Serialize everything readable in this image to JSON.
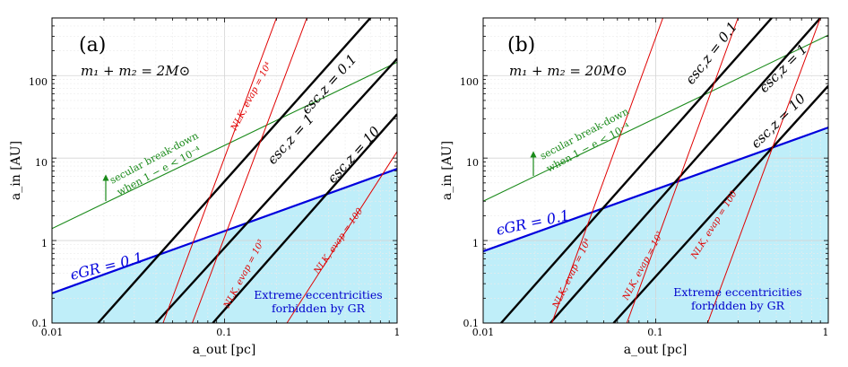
{
  "chart_data": [
    {
      "type": "line",
      "panel_label": "(a)",
      "mass_label": "m₁ + m₂ = 2M⊙",
      "xlabel": "a_out [pc]",
      "ylabel": "a_in [AU]",
      "xscale": "log",
      "yscale": "log",
      "xlim": [
        0.01,
        1
      ],
      "ylim": [
        0.1,
        500
      ],
      "grid": true,
      "x_ticks": [
        "0.01",
        "0.1",
        "1"
      ],
      "y_ticks": [
        "0.1",
        "1",
        "10",
        "100"
      ],
      "shaded_region_label": [
        "Extreme eccentricities",
        "forbidden by GR"
      ],
      "series": [
        {
          "name": "ε_GR = 0.1",
          "label": "ϵGR = 0.1",
          "color": "#0000dd",
          "x": [
            0.01,
            1
          ],
          "y": [
            0.23,
            7.4
          ]
        },
        {
          "name": "secular break-down",
          "label_lines": [
            "secular break-down",
            "when 1 − e < 10⁻⁴"
          ],
          "color": "#1a8a1a",
          "x": [
            0.01,
            1
          ],
          "y": [
            1.4,
            145
          ]
        },
        {
          "name": "ε_sc,z = 0.1",
          "label": "ϵsc,z = 0.1",
          "color": "#000000",
          "x": [
            0.0185,
            0.7
          ],
          "y": [
            0.1,
            500
          ]
        },
        {
          "name": "ε_sc,z = 1",
          "label": "ϵsc,z = 1",
          "color": "#000000",
          "x": [
            0.04,
            1
          ],
          "y": [
            0.1,
            160
          ]
        },
        {
          "name": "ε_sc,z = 10",
          "label": "ϵsc,z = 10",
          "color": "#000000",
          "x": [
            0.0855,
            1
          ],
          "y": [
            0.1,
            34
          ]
        },
        {
          "name": "N_LK, evap = 10⁴",
          "label": "NLK, evap = 10⁴",
          "color": "#e00000",
          "x": [
            0.044,
            0.2
          ],
          "y": [
            0.1,
            500
          ]
        },
        {
          "name": "N_LK, evap = 10³",
          "label": "NLK, evap = 10³",
          "color": "#e00000",
          "x": [
            0.065,
            0.3
          ],
          "y": [
            0.1,
            500
          ]
        },
        {
          "name": "N_LK, evap = 100",
          "label": "NLK, evap = 100",
          "color": "#e00000",
          "x": [
            0.23,
            1
          ],
          "y": [
            0.1,
            12
          ]
        }
      ]
    },
    {
      "type": "line",
      "panel_label": "(b)",
      "mass_label": "m₁ + m₂ = 20M⊙",
      "xlabel": "a_out [pc]",
      "ylabel": "a_in [AU]",
      "xscale": "log",
      "yscale": "log",
      "xlim": [
        0.01,
        1
      ],
      "ylim": [
        0.1,
        500
      ],
      "grid": true,
      "x_ticks": [
        "0.01",
        "0.1",
        "1"
      ],
      "y_ticks": [
        "0.1",
        "1",
        "10",
        "100"
      ],
      "shaded_region_label": [
        "Extreme eccentricities",
        "forbidden by GR"
      ],
      "series": [
        {
          "name": "ε_GR = 0.1",
          "label": "ϵGR = 0.1",
          "color": "#0000dd",
          "x": [
            0.01,
            1
          ],
          "y": [
            0.74,
            23.5
          ]
        },
        {
          "name": "secular break-down",
          "label_lines": [
            "secular break-down",
            "when 1 − e < 10⁻⁴"
          ],
          "color": "#1a8a1a",
          "x": [
            0.01,
            1
          ],
          "y": [
            3.0,
            310
          ]
        },
        {
          "name": "ε_sc,z = 0.1",
          "label": "ϵsc,z = 0.1",
          "color": "#000000",
          "x": [
            0.0127,
            0.47
          ],
          "y": [
            0.1,
            500
          ]
        },
        {
          "name": "ε_sc,z = 1",
          "label": "ϵsc,z = 1",
          "color": "#000000",
          "x": [
            0.0245,
            0.9
          ],
          "y": [
            0.1,
            500
          ]
        },
        {
          "name": "ε_sc,z = 10",
          "label": "ϵsc,z = 10",
          "color": "#000000",
          "x": [
            0.057,
            1
          ],
          "y": [
            0.1,
            75
          ]
        },
        {
          "name": "N_LK, evap = 10⁴",
          "label": "NLK, evap = 10⁴",
          "color": "#e00000",
          "x": [
            0.025,
            0.11
          ],
          "y": [
            0.1,
            500
          ]
        },
        {
          "name": "N_LK, evap = 10³",
          "label": "NLK, evap = 10³",
          "color": "#e00000",
          "x": [
            0.068,
            0.3
          ],
          "y": [
            0.1,
            500
          ]
        },
        {
          "name": "N_LK, evap = 100",
          "label": "NLK, evap = 100",
          "color": "#e00000",
          "x": [
            0.2,
            0.9
          ],
          "y": [
            0.1,
            500
          ]
        }
      ]
    }
  ]
}
